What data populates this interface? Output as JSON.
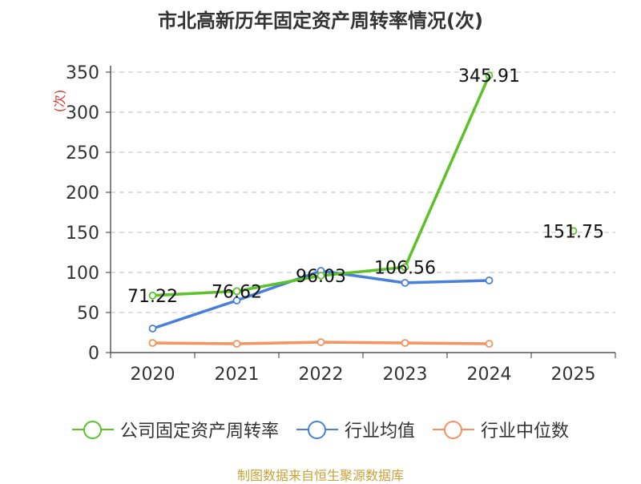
{
  "chart_data": {
    "type": "line",
    "title": "市北高新历年固定资产周转率情况(次)",
    "ylabel": "(次)",
    "xlabel": "",
    "categories": [
      "2020",
      "2021",
      "2022",
      "2023",
      "2024",
      "2025"
    ],
    "ylim": [
      0,
      350
    ],
    "yticks": [
      0,
      50,
      100,
      150,
      200,
      250,
      300,
      350
    ],
    "grid": true,
    "legend_position": "bottom",
    "series": [
      {
        "name": "公司固定资产周转率",
        "color": "#5cc22a",
        "values": [
          71.22,
          76.62,
          96.03,
          106.56,
          345.91,
          151.75
        ],
        "labels": [
          "71.22",
          "76.62",
          "96.03",
          "106.56",
          "345.91",
          "151.75"
        ],
        "segment_break_before": [
          5
        ]
      },
      {
        "name": "行业均值",
        "color": "#4a7fd9",
        "values": [
          30,
          65,
          102,
          87,
          90,
          null
        ]
      },
      {
        "name": "行业中位数",
        "color": "#f5925e",
        "values": [
          12,
          11,
          13,
          12,
          11,
          null
        ]
      }
    ]
  },
  "source": "制图数据来自恒生聚源数据库"
}
